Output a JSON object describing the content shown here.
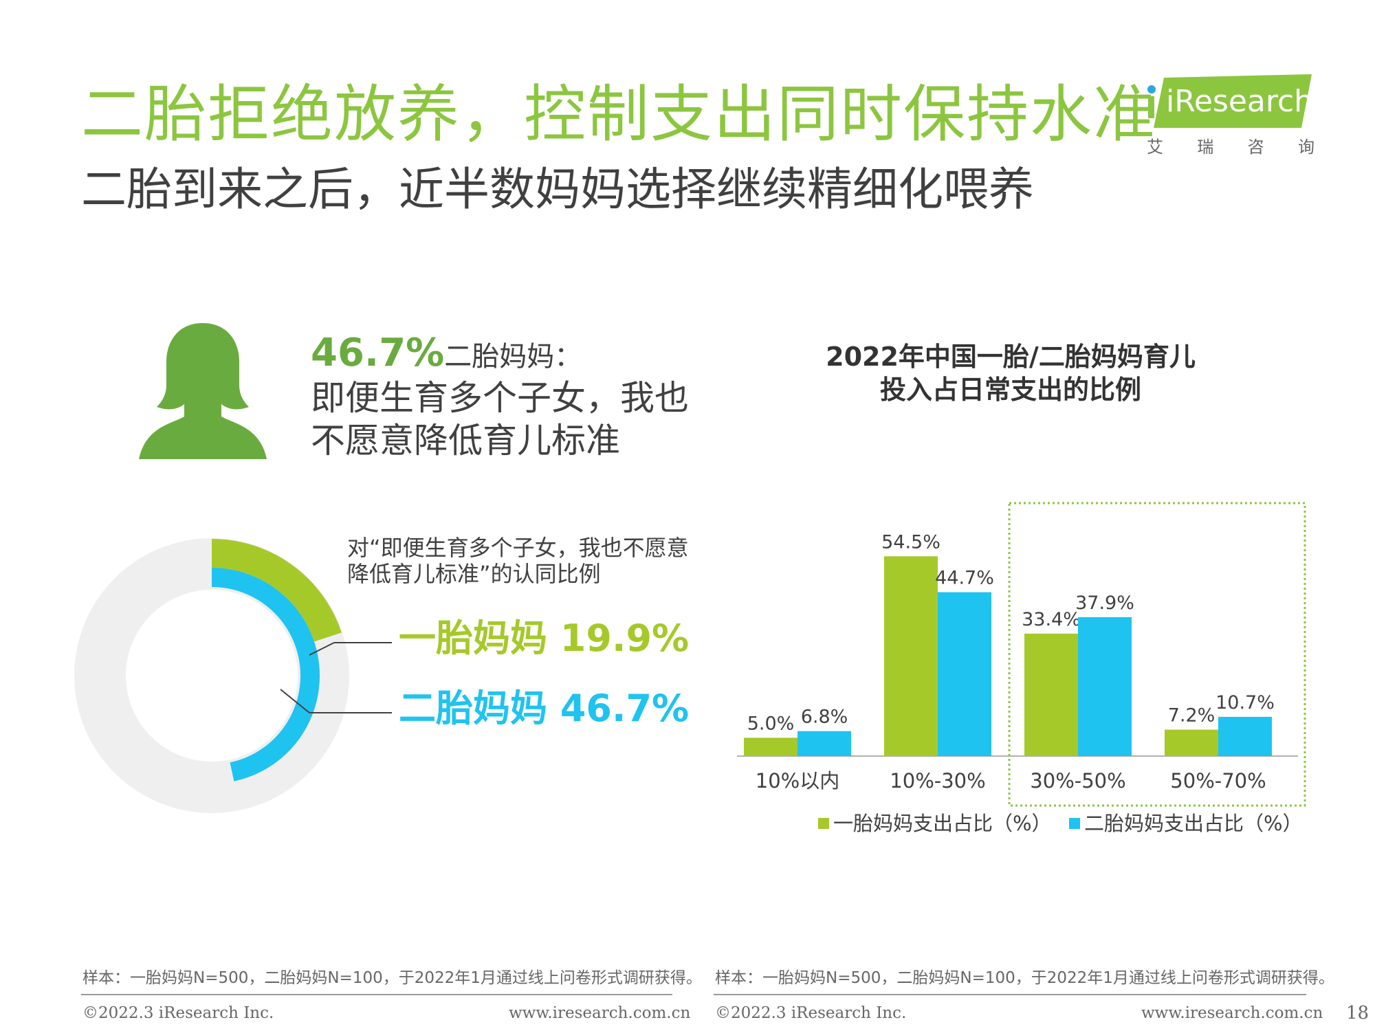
{
  "header": {
    "title": "二胎拒绝放养，控制支出同时保持水准",
    "subtitle": "二胎到来之后，近半数妈妈选择继续精细化喂养"
  },
  "logo": {
    "brand": "iResearch",
    "cn_name": [
      "艾",
      "瑞",
      "咨",
      "询"
    ],
    "color": "#8cc63f"
  },
  "highlight": {
    "pct": "46.7%",
    "who": "二胎妈妈：",
    "quote_line1": "即便生育多个子女，我也",
    "quote_line2": "不愿意降低育儿标准",
    "icon": "female-silhouette-icon"
  },
  "donut": {
    "caption_line1": "对“即便生育多个子女，我也不愿意",
    "caption_line2": "降低育儿标准”的认同比例",
    "items": [
      {
        "label": "一胎妈妈 19.9%",
        "name": "一胎妈妈",
        "value": 19.9,
        "color": "#a6c92a"
      },
      {
        "label": "二胎妈妈 46.7%",
        "name": "二胎妈妈",
        "value": 46.7,
        "color": "#1fc3f0"
      }
    ],
    "track_color": "#efefef"
  },
  "chart_data": {
    "type": "bar",
    "title_line1": "2022年中国一胎/二胎妈妈育儿",
    "title_line2": "投入占日常支出的比例",
    "categories": [
      "10%以内",
      "10%-30%",
      "30%-50%",
      "50%-70%"
    ],
    "series": [
      {
        "name": "一胎妈妈支出占比（%）",
        "values": [
          5.0,
          54.5,
          33.4,
          7.2
        ],
        "labels": [
          "5.0%",
          "54.5%",
          "33.4%",
          "7.2%"
        ],
        "color": "#a6c92a"
      },
      {
        "name": "二胎妈妈支出占比（%）",
        "values": [
          6.8,
          44.7,
          37.9,
          10.7
        ],
        "labels": [
          "6.8%",
          "44.7%",
          "37.9%",
          "10.7%"
        ],
        "color": "#1fc3f0"
      }
    ],
    "ylim": [
      0,
      60
    ],
    "highlight_categories": [
      "30%-50%",
      "50%-70%"
    ],
    "legend_position": "bottom"
  },
  "notes": {
    "left": "样本：一胎妈妈N=500，二胎妈妈N=100，于2022年1月通过线上问卷形式调研获得。",
    "right": "样本：一胎妈妈N=500，二胎妈妈N=100，于2022年1月通过线上问卷形式调研获得。"
  },
  "footer": {
    "copyright": "©2022.3 iResearch Inc.",
    "url": "www.iresearch.com.cn",
    "page": "18"
  }
}
